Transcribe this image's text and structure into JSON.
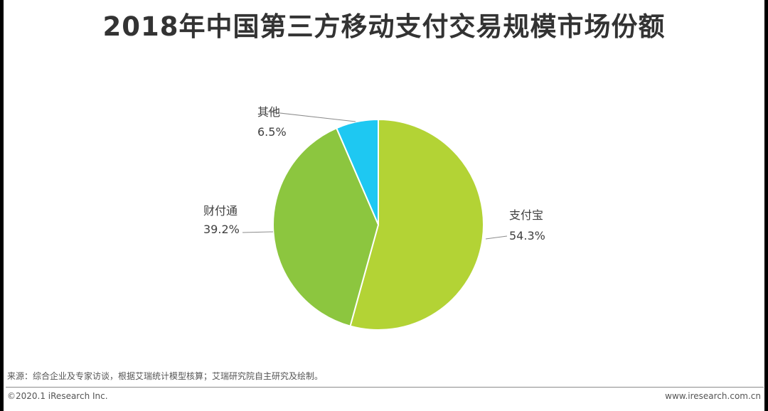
{
  "chart_data": {
    "type": "pie",
    "title": "2018年中国第三方移动支付交易规模市场份额",
    "slices": [
      {
        "label": "支付宝",
        "value": 54.3,
        "value_label": "54.3%",
        "color": "#b3d335"
      },
      {
        "label": "财付通",
        "value": 39.2,
        "value_label": "39.2%",
        "color": "#8cc63f"
      },
      {
        "label": "其他",
        "value": 6.5,
        "value_label": "6.5%",
        "color": "#1ec8f2"
      }
    ]
  },
  "source": "来源：综合企业及专家访谈，根据艾瑞统计模型核算；艾瑞研究院自主研究及绘制。",
  "footer": {
    "copyright": "©2020.1 iResearch Inc.",
    "website": "www.iresearch.com.cn"
  }
}
